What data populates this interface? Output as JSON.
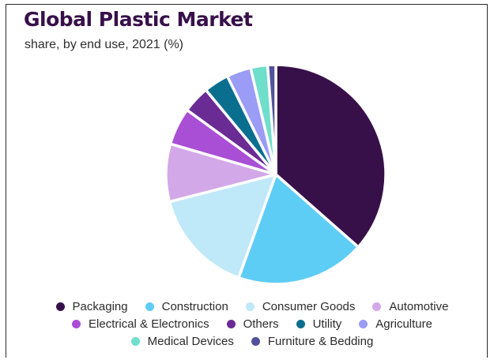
{
  "chart_data": {
    "type": "pie",
    "title": "Global Plastic Market",
    "subtitle": "share, by end use, 2021 (%)",
    "categories": [
      "Packaging",
      "Construction",
      "Consumer Goods",
      "Automotive",
      "Electrical & Electronics",
      "Others",
      "Utility",
      "Agriculture",
      "Medical Devices",
      "Furniture & Bedding"
    ],
    "values": [
      36.5,
      19.0,
      15.5,
      8.5,
      5.5,
      4.0,
      3.7,
      3.6,
      2.5,
      1.2
    ],
    "colors": [
      "#37104a",
      "#5ecdf6",
      "#bfe8f8",
      "#d3a8e8",
      "#a94fd6",
      "#6a2b94",
      "#0a6e8f",
      "#9a9cf6",
      "#6fdecb",
      "#51519c"
    ],
    "legend_position": "bottom",
    "legend_rows": [
      [
        0,
        1,
        2,
        3
      ],
      [
        4,
        5,
        6,
        7
      ],
      [
        8,
        9
      ]
    ]
  }
}
